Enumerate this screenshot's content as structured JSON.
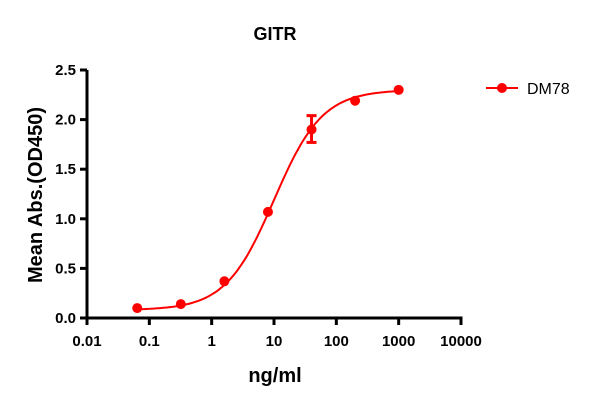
{
  "chart_data": {
    "type": "scatter",
    "title": "GITR",
    "xlabel": "ng/ml",
    "ylabel": "Mean Abs.(OD450)",
    "xscale": "log",
    "xlim": [
      0.01,
      10000
    ],
    "ylim": [
      0,
      2.5
    ],
    "x_ticks": [
      "0.01",
      "0.1",
      "1",
      "10",
      "100",
      "1000",
      "10000"
    ],
    "y_ticks": [
      "0.0",
      "0.5",
      "1.0",
      "1.5",
      "2.0",
      "2.5"
    ],
    "grid": false,
    "legend_position": "top-right",
    "series": [
      {
        "name": "DM78",
        "color": "#ff0000",
        "marker": "circle",
        "fit": "sigmoidal curve",
        "x": [
          0.064,
          0.32,
          1.6,
          8,
          40,
          200,
          1000
        ],
        "y": [
          0.1,
          0.14,
          0.37,
          1.07,
          1.9,
          2.19,
          2.3
        ],
        "error_bars": [
          null,
          null,
          null,
          null,
          [
            1.77,
            2.04
          ],
          null,
          null
        ]
      }
    ]
  }
}
